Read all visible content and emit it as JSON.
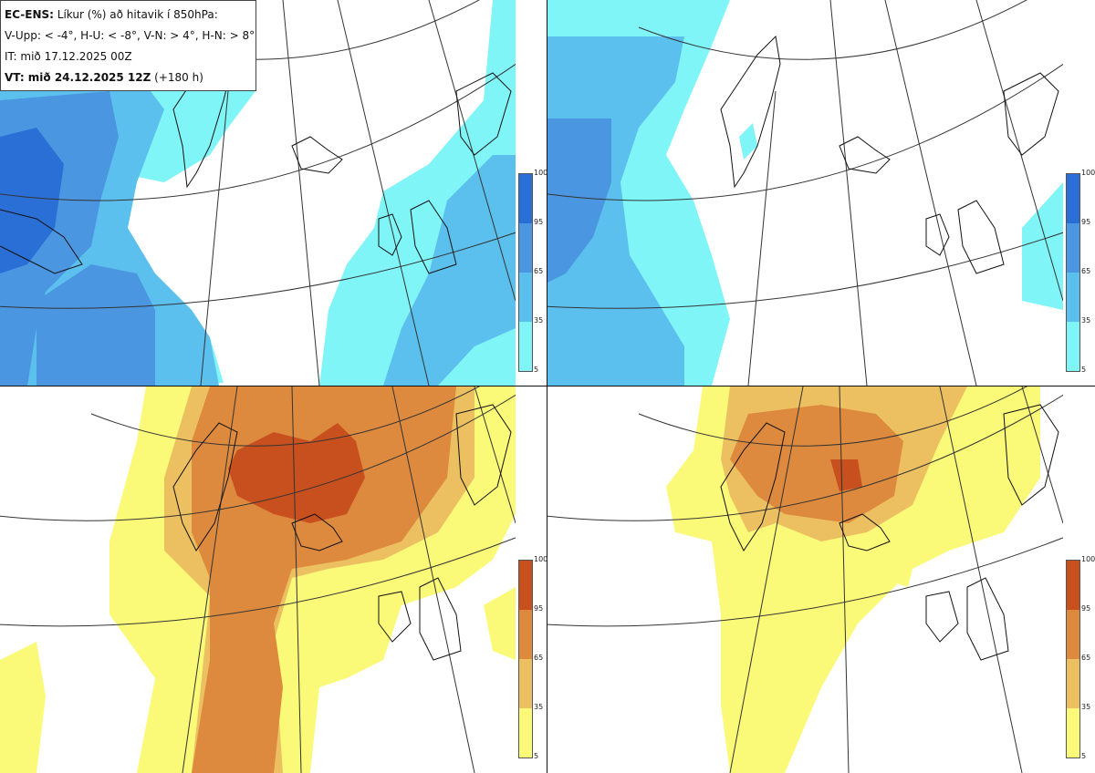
{
  "info": {
    "line1_bold": "EC-ENS:",
    "line1_rest": " Líkur (%) að hitavik í 850hPa:",
    "line2": "V-Upp: < -4°, H-U: < -8°, V-N: > 4°, H-N: > 8°",
    "line3": "IT: mið 17.12.2025 00Z",
    "line4_bold": "VT: mið 24.12.2025 12Z",
    "line4_rest": " (+180 h)"
  },
  "panels": [
    {
      "id": "v-upp",
      "label": "V-Upp",
      "threshold": "< -4°",
      "scheme": "cold"
    },
    {
      "id": "h-u",
      "label": "H-U",
      "threshold": "< -8°",
      "scheme": "cold"
    },
    {
      "id": "v-n",
      "label": "V-N",
      "threshold": "> 4°",
      "scheme": "warm"
    },
    {
      "id": "h-n",
      "label": "H-N",
      "threshold": "> 8°",
      "scheme": "warm"
    }
  ],
  "colorbar": {
    "ticks": [
      "100",
      "95",
      "65",
      "35",
      "5"
    ],
    "cold_colors": [
      "#2a6fd6",
      "#4a96e0",
      "#5cc0ee",
      "#80f5f7"
    ],
    "warm_colors": [
      "#c8501e",
      "#dd8a3e",
      "#ecc060",
      "#fafa78"
    ]
  }
}
